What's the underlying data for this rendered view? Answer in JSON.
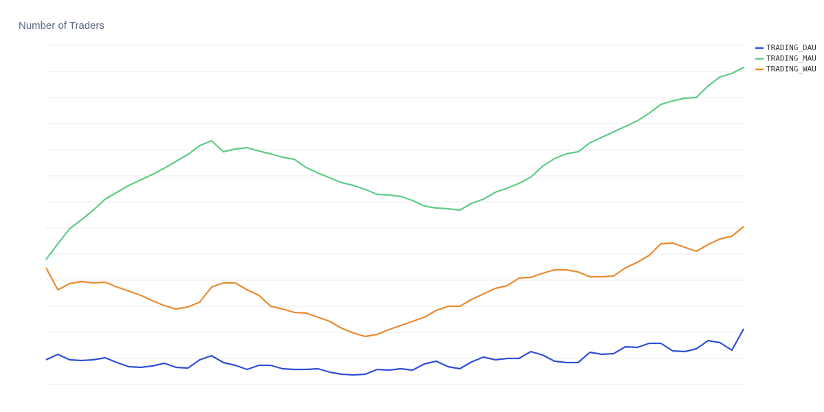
{
  "chart_data": {
    "type": "line",
    "title": "Number of Traders",
    "categories": [
      null,
      null,
      null,
      null,
      null,
      null,
      null,
      null,
      null,
      null,
      null,
      null,
      null,
      null,
      null,
      null,
      null,
      null,
      null,
      null,
      null,
      null,
      null,
      null,
      null,
      null,
      null,
      null,
      null,
      null,
      null,
      null,
      null,
      null,
      null,
      null,
      null,
      null,
      null,
      null,
      null,
      null,
      null,
      null,
      null,
      null,
      null,
      null,
      null,
      null,
      null,
      null,
      null,
      null,
      null,
      null,
      null,
      null,
      null,
      null
    ],
    "series": [
      {
        "name": "TRADING_DAU",
        "color": "#2e4fd8",
        "values": [
          36,
          44,
          36,
          35,
          36,
          39,
          32,
          26,
          25,
          27,
          31,
          25,
          24,
          36,
          42,
          32,
          28,
          22,
          28,
          28,
          23,
          22,
          22,
          23,
          18,
          15,
          14,
          15,
          22,
          21,
          23,
          21,
          30,
          34,
          26,
          23,
          33,
          40,
          36,
          38,
          38,
          48,
          43,
          34,
          32,
          32,
          47,
          44,
          45,
          55,
          54,
          60,
          60,
          49,
          48,
          52,
          64,
          61,
          50,
          81
        ]
      },
      {
        "name": "TRADING_MAU",
        "color": "#5dcc85",
        "values": [
          182,
          205,
          227,
          240,
          254,
          270,
          280,
          290,
          298,
          306,
          315,
          325,
          335,
          348,
          355,
          339,
          343,
          345,
          340,
          336,
          331,
          328,
          316,
          308,
          301,
          294,
          290,
          284,
          277,
          276,
          274,
          268,
          260,
          257,
          256,
          254,
          264,
          270,
          280,
          286,
          293,
          302,
          318,
          329,
          336,
          339,
          352,
          360,
          368,
          376,
          384,
          395,
          408,
          413,
          417,
          418,
          435,
          448,
          453,
          462
        ]
      },
      {
        "name": "TRADING_WAU",
        "color": "#e98a2f",
        "values": [
          170,
          138,
          147,
          150,
          148,
          149,
          142,
          136,
          130,
          122,
          115,
          110,
          113,
          120,
          142,
          148,
          148,
          138,
          130,
          114,
          110,
          105,
          104,
          98,
          92,
          82,
          75,
          70,
          73,
          80,
          86,
          92,
          98,
          108,
          114,
          114,
          124,
          132,
          140,
          144,
          155,
          156,
          162,
          167,
          167,
          164,
          157,
          157,
          158,
          170,
          178,
          188,
          205,
          206,
          200,
          194,
          204,
          212,
          216,
          230
        ]
      }
    ],
    "ylim": [
      0,
      495
    ],
    "yticks": [
      0,
      38,
      76,
      114,
      152,
      190,
      228,
      266,
      304,
      342,
      380,
      418,
      456,
      494
    ],
    "grid": true,
    "legend": "top-right"
  }
}
